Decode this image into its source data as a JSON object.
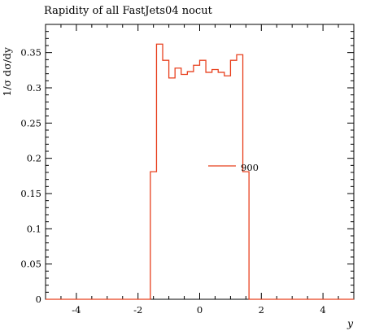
{
  "chart_data": {
    "type": "line",
    "title": "Rapidity of all FastJets04 nocut",
    "xlabel": "y",
    "ylabel": "1/σ dσ/dy",
    "xlim": [
      -5,
      5
    ],
    "ylim": [
      0,
      0.39
    ],
    "x_ticks": [
      -4,
      -2,
      0,
      2,
      4
    ],
    "x_tick_labels": [
      "-4",
      "-2",
      "0",
      "2",
      "4"
    ],
    "y_ticks": [
      0,
      0.05,
      0.1,
      0.15,
      0.2,
      0.25,
      0.3,
      0.35
    ],
    "y_tick_labels": [
      "0",
      "0.05",
      "0.1",
      "0.15",
      "0.2",
      "0.25",
      "0.3",
      "0.35"
    ],
    "legend_position": "center-right",
    "grid": false,
    "series": [
      {
        "name": "900",
        "color": "#e8401e",
        "style": "step",
        "bin_edges": [
          -5.0,
          -1.6,
          -1.4,
          -1.2,
          -1.0,
          -0.8,
          -0.6,
          -0.4,
          -0.2,
          0.0,
          0.2,
          0.4,
          0.6,
          0.8,
          1.0,
          1.2,
          1.4,
          1.6,
          5.0
        ],
        "values": [
          0.0,
          0.181,
          0.362,
          0.339,
          0.314,
          0.328,
          0.319,
          0.323,
          0.332,
          0.339,
          0.322,
          0.326,
          0.322,
          0.317,
          0.339,
          0.347,
          0.181,
          0.0
        ]
      }
    ]
  }
}
